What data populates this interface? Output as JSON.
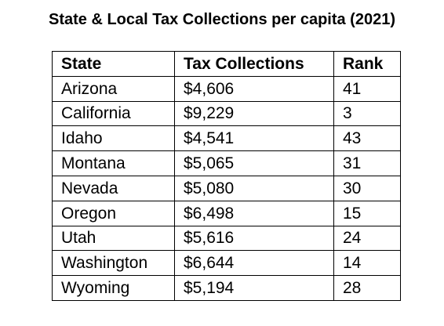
{
  "header": {
    "title": "State & Local Tax Collections per capita (2021)"
  },
  "table": {
    "columns": [
      "State",
      "Tax Collections",
      "Rank"
    ],
    "rows": [
      [
        "Arizona",
        "$4,606",
        "41"
      ],
      [
        "California",
        "$9,229",
        "3"
      ],
      [
        "Idaho",
        "$4,541",
        "43"
      ],
      [
        "Montana",
        "$5,065",
        "31"
      ],
      [
        "Nevada",
        "$5,080",
        "30"
      ],
      [
        "Oregon",
        "$6,498",
        "15"
      ],
      [
        "Utah",
        "$5,616",
        "24"
      ],
      [
        "Washington",
        "$6,644",
        "14"
      ],
      [
        "Wyoming",
        "$5,194",
        "28"
      ]
    ]
  }
}
